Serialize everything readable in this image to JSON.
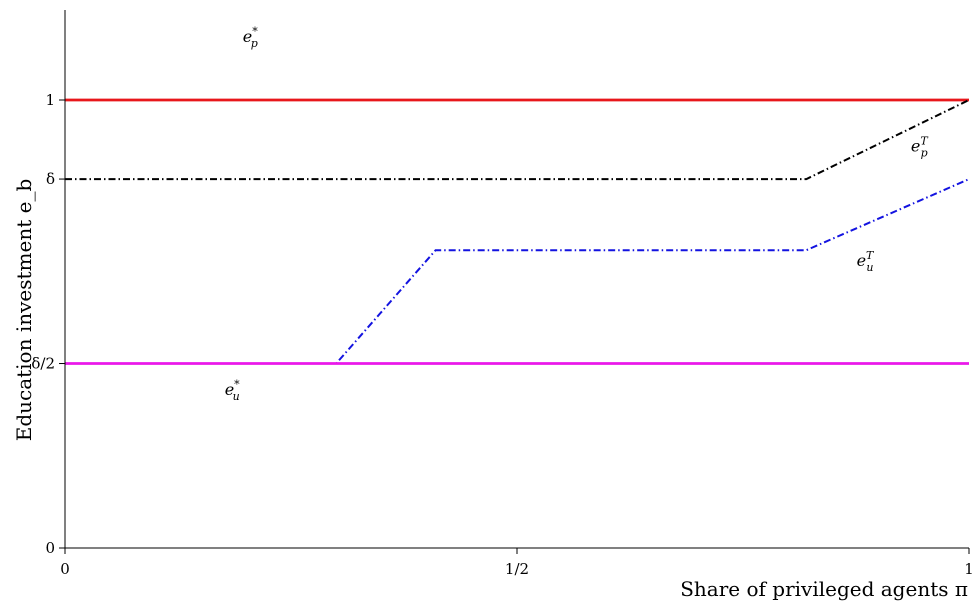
{
  "chart_data": {
    "type": "line",
    "xlabel": "Share of privileged agents π",
    "ylabel": "Education investment e_b",
    "xlim": [
      0,
      1
    ],
    "ylim": [
      0,
      1.2
    ],
    "delta": 0.7,
    "x_ticks": [
      {
        "value": 0,
        "label": "0"
      },
      {
        "value": 0.5,
        "label": "1/2"
      },
      {
        "value": 1,
        "label": "1"
      }
    ],
    "y_ticks": [
      {
        "value": 0,
        "label": "0"
      },
      {
        "value": 0.35,
        "label": "δ/2"
      },
      {
        "value": 0.7,
        "label": "δ"
      },
      {
        "value": 0.85,
        "label": "1"
      }
    ],
    "series": [
      {
        "name": "e_p^*",
        "base": "e",
        "sub": "p",
        "sup": "*",
        "color": "#e8171b",
        "style": "solid",
        "width": 2.8,
        "x": [
          0,
          1
        ],
        "y": [
          0.85,
          0.85
        ],
        "label_at": [
          0.205,
          0.96
        ]
      },
      {
        "name": "e_p^T",
        "base": "e",
        "sub": "p",
        "sup": "T",
        "color": "#000000",
        "style": "dashdot",
        "width": 2,
        "x": [
          0,
          0.82,
          1
        ],
        "y": [
          0.7,
          0.7,
          0.85
        ],
        "label_at": [
          0.945,
          0.752
        ]
      },
      {
        "name": "e_u^T",
        "base": "e",
        "sub": "u",
        "sup": "T",
        "color": "#1313e0",
        "style": "dashdot",
        "width": 2,
        "x": [
          0,
          0.3,
          0.41,
          0.82,
          1
        ],
        "y": [
          0.35,
          0.35,
          0.565,
          0.565,
          0.7
        ],
        "label_at": [
          0.885,
          0.535
        ]
      },
      {
        "name": "e_u^*",
        "base": "e",
        "sub": "u",
        "sup": "*",
        "color": "#ea18ea",
        "style": "solid",
        "width": 2.8,
        "x": [
          0,
          1
        ],
        "y": [
          0.35,
          0.35
        ],
        "label_at": [
          0.185,
          0.29
        ]
      }
    ]
  }
}
